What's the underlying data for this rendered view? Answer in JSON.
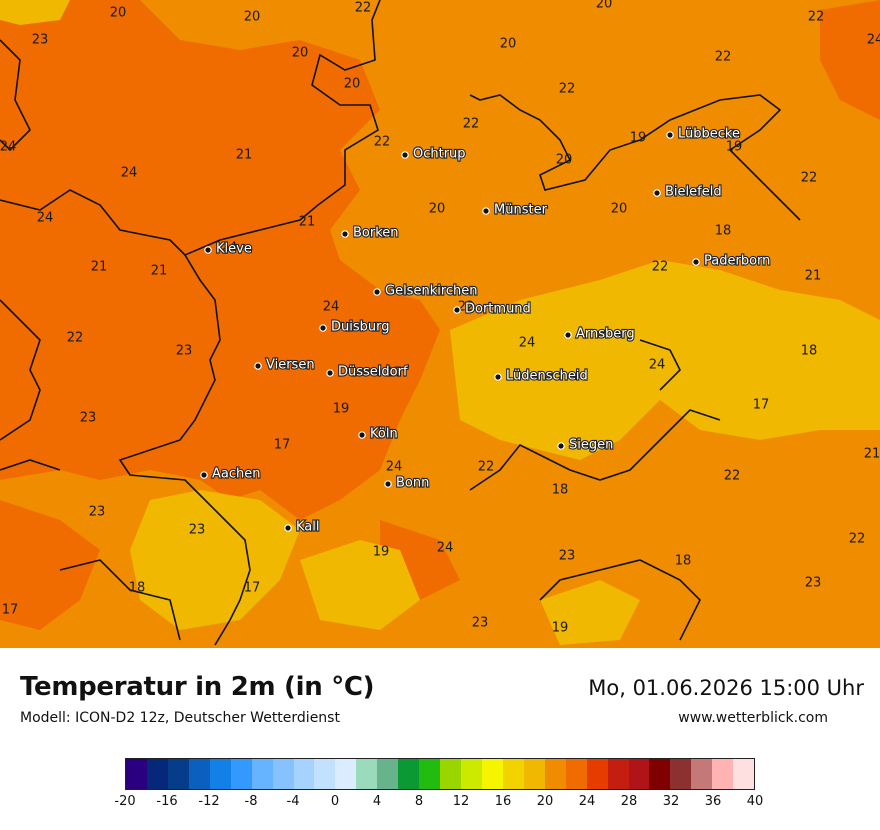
{
  "title": "Temperatur in 2m (in °C)",
  "model": "Modell: ICON-D2 12z, Deutscher Wetterdienst",
  "datetime": "Mo, 01.06.2026 15:00 Uhr",
  "website": "www.wetterblick.com",
  "legend": {
    "colors": [
      "#2b0080",
      "#05287a",
      "#063d8a",
      "#0a5fbf",
      "#1280e6",
      "#3399ff",
      "#66b3ff",
      "#85c2ff",
      "#a6d2ff",
      "#c2e0ff",
      "#dbecff",
      "#99dbbb",
      "#66b38c",
      "#0a9933",
      "#22bb10",
      "#99d600",
      "#ccea00",
      "#f5f500",
      "#f2d300",
      "#f0b800",
      "#f08c00",
      "#f06c00",
      "#e63c00",
      "#c41e10",
      "#b01419",
      "#800000",
      "#8c3030",
      "#c47878",
      "#ffb3b3",
      "#ffe0e0"
    ],
    "ticks": [
      "-20",
      "-16",
      "-12",
      "-8",
      "-4",
      "0",
      "4",
      "8",
      "12",
      "16",
      "20",
      "24",
      "28",
      "32",
      "36",
      "40"
    ]
  },
  "cities": [
    {
      "name": "Ochtrup"
    },
    {
      "name": "Lübbecke"
    },
    {
      "name": "Bielefeld"
    },
    {
      "name": "Münster"
    },
    {
      "name": "Borken"
    },
    {
      "name": "Kleve"
    },
    {
      "name": "Paderborn"
    },
    {
      "name": "Gelsenkirchen"
    },
    {
      "name": "Dortmund"
    },
    {
      "name": "Duisburg"
    },
    {
      "name": "Arnsberg"
    },
    {
      "name": "Viersen"
    },
    {
      "name": "Düsseldorf"
    },
    {
      "name": "Lüdenscheid"
    },
    {
      "name": "Köln"
    },
    {
      "name": "Siegen"
    },
    {
      "name": "Aachen"
    },
    {
      "name": "Bonn"
    },
    {
      "name": "Kall"
    }
  ],
  "values": [
    "20",
    "20",
    "22",
    "20",
    "22",
    "23",
    "20",
    "24",
    "20",
    "22",
    "20",
    "22",
    "22",
    "24",
    "19",
    "19",
    "21",
    "22",
    "20",
    "24",
    "22",
    "20",
    "24",
    "21",
    "20",
    "22",
    "18",
    "21",
    "24",
    "21",
    "21",
    "22",
    "24",
    "22",
    "23",
    "24",
    "18",
    "24",
    "17",
    "19",
    "17",
    "23",
    "17",
    "24",
    "22",
    "21",
    "23",
    "22",
    "18",
    "23",
    "22",
    "17",
    "18",
    "19",
    "24",
    "23",
    "18",
    "23",
    "17",
    "23",
    "19",
    "19"
  ]
}
